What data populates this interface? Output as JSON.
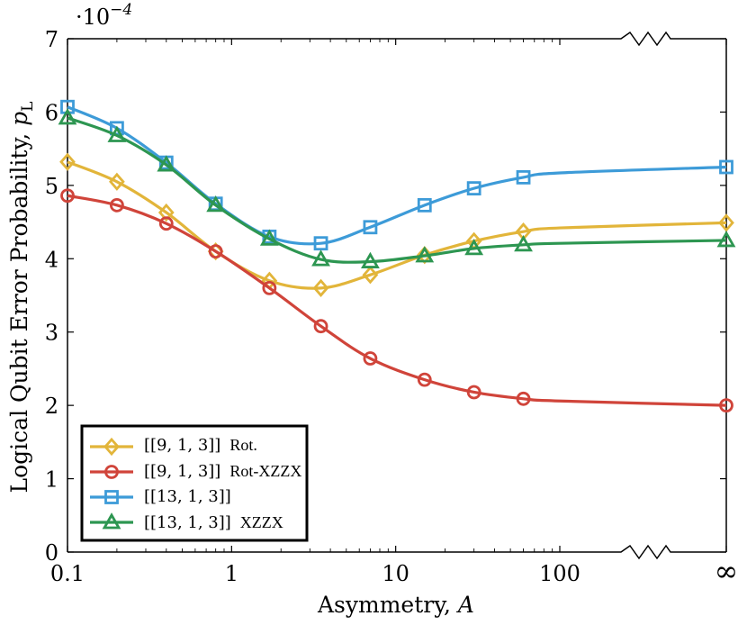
{
  "chart_data": {
    "type": "line",
    "title": "",
    "multiplier": "·10",
    "multiplier_exp": "−4",
    "xlabel": "Asymmetry, ",
    "xlabel_var": "A",
    "ylabel": "Logical Qubit Error Probability, ",
    "ylabel_var": "p",
    "ylabel_sub": "L",
    "x_scale": "log",
    "x_break": "between 100 and ∞",
    "x_ticks": [
      {
        "value": 0.1,
        "label": "0.1"
      },
      {
        "value": 1,
        "label": "1"
      },
      {
        "value": 10,
        "label": "10"
      },
      {
        "value": 100,
        "label": "100"
      },
      {
        "value": "inf",
        "label": "∞"
      }
    ],
    "y_ticks": [
      "0",
      "1",
      "2",
      "3",
      "4",
      "5",
      "6",
      "7"
    ],
    "ylim": [
      0,
      7
    ],
    "grid": false,
    "legend_position": "bottom-left",
    "series": [
      {
        "name": "[[9, 1, 3]] Rot.",
        "color": "#e2b53a",
        "marker": "diamond",
        "x": [
          0.1,
          0.2,
          0.4,
          0.8,
          1.7,
          3.5,
          7,
          15,
          30,
          60,
          100,
          "inf"
        ],
        "y": [
          5.32,
          5.05,
          4.63,
          4.1,
          3.7,
          3.6,
          3.78,
          4.05,
          4.24,
          4.37,
          4.42,
          4.49
        ],
        "marker_mask": [
          1,
          1,
          1,
          1,
          1,
          1,
          1,
          1,
          1,
          1,
          0,
          1
        ]
      },
      {
        "name": "[[9, 1, 3]] Rot-XZZX",
        "color": "#d0443a",
        "marker": "circle",
        "x": [
          0.1,
          0.2,
          0.4,
          0.8,
          1.7,
          3.5,
          7,
          15,
          30,
          60,
          100,
          "inf"
        ],
        "y": [
          4.86,
          4.73,
          4.48,
          4.1,
          3.6,
          3.08,
          2.64,
          2.35,
          2.18,
          2.09,
          2.06,
          2.0
        ],
        "marker_mask": [
          1,
          1,
          1,
          1,
          1,
          1,
          1,
          1,
          1,
          1,
          0,
          1
        ]
      },
      {
        "name": "[[13, 1, 3]]",
        "color": "#3d9bd8",
        "marker": "square",
        "x": [
          0.1,
          0.2,
          0.4,
          0.8,
          1.7,
          3.5,
          7,
          15,
          30,
          60,
          100,
          "inf"
        ],
        "y": [
          6.07,
          5.78,
          5.31,
          4.75,
          4.3,
          4.21,
          4.43,
          4.73,
          4.96,
          5.11,
          5.17,
          5.25
        ],
        "marker_mask": [
          1,
          1,
          1,
          1,
          1,
          1,
          1,
          1,
          1,
          1,
          0,
          1
        ]
      },
      {
        "name": "[[13, 1, 3]] XZZX",
        "color": "#2d9651",
        "marker": "triangle",
        "x": [
          0.1,
          0.2,
          0.4,
          0.8,
          1.7,
          3.5,
          7,
          15,
          30,
          60,
          100,
          "inf"
        ],
        "y": [
          5.92,
          5.68,
          5.28,
          4.73,
          4.27,
          3.99,
          3.96,
          4.04,
          4.14,
          4.19,
          4.21,
          4.25
        ],
        "marker_mask": [
          1,
          1,
          1,
          1,
          1,
          1,
          1,
          1,
          1,
          1,
          0,
          1
        ]
      }
    ],
    "legend_labels": [
      {
        "code": "[[9, 1, 3]]",
        "suffix": "Rot."
      },
      {
        "code": "[[9, 1, 3]]",
        "suffix": "Rot-XZZX"
      },
      {
        "code": "[[13, 1, 3]]",
        "suffix": ""
      },
      {
        "code": "[[13, 1, 3]]",
        "suffix": "XZZX"
      }
    ]
  }
}
